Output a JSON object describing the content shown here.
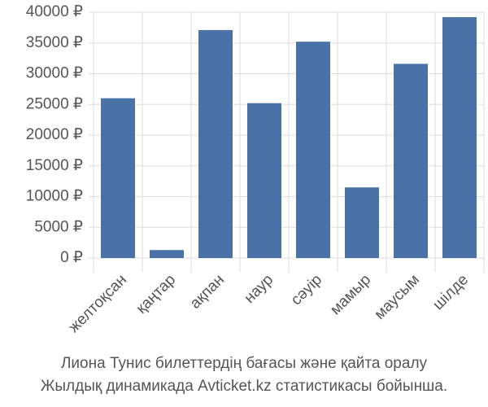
{
  "chart_data": {
    "type": "bar",
    "title": [
      "Лиона Тунис билеттердің бағасы және қайта оралу",
      "Жылдық динамикада Avticket.kz статистикасы бойынша."
    ],
    "categories": [
      "желтоқсан",
      "қаңтар",
      "ақпан",
      "наур",
      "сәуір",
      "мамыр",
      "маусым",
      "шілде"
    ],
    "values": [
      26000,
      1300,
      37100,
      25200,
      35200,
      11500,
      31600,
      39200
    ],
    "color": "#4a72a6",
    "ylim": [
      0,
      40000
    ],
    "yticks": [
      {
        "value": 0,
        "label": "0 ₽"
      },
      {
        "value": 5000,
        "label": "5000 ₽"
      },
      {
        "value": 10000,
        "label": "10000 ₽"
      },
      {
        "value": 15000,
        "label": "15000 ₽"
      },
      {
        "value": 20000,
        "label": "20000 ₽"
      },
      {
        "value": 25000,
        "label": "25000 ₽"
      },
      {
        "value": 30000,
        "label": "30000 ₽"
      },
      {
        "value": 35000,
        "label": "35000 ₽"
      },
      {
        "value": 40000,
        "label": "40000 ₽"
      }
    ],
    "grid": true
  }
}
